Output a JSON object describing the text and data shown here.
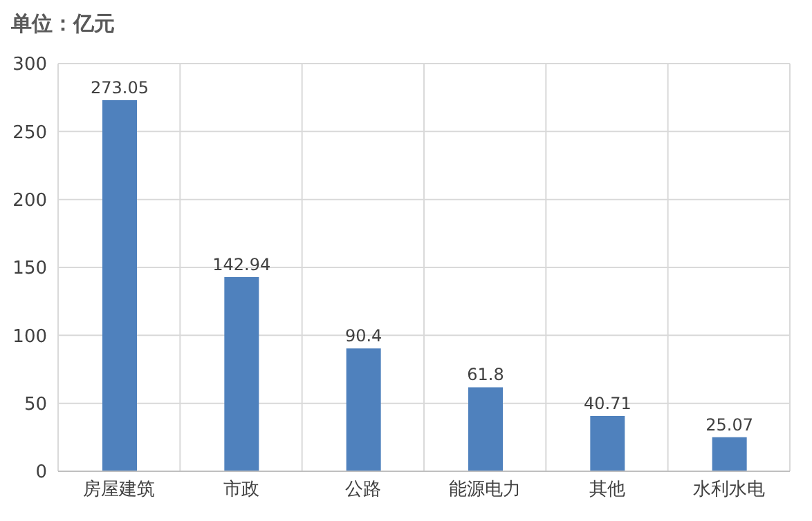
{
  "chart_data": {
    "type": "bar",
    "title": "单位：亿元",
    "categories": [
      "房屋建筑",
      "市政",
      "公路",
      "能源电力",
      "其他",
      "水利水电"
    ],
    "values": [
      273.05,
      142.94,
      90.4,
      61.8,
      40.71,
      25.07
    ],
    "color": "#4f81bd",
    "ylim": [
      0,
      300
    ],
    "yticks": [
      0,
      50,
      100,
      150,
      200,
      250,
      300
    ],
    "grid": true,
    "data_labels": true
  }
}
